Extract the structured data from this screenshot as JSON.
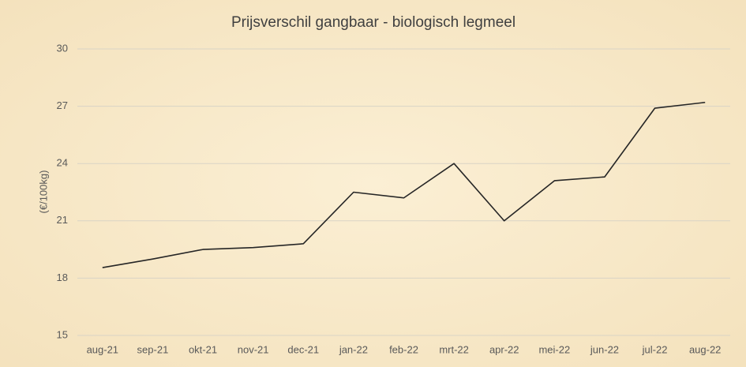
{
  "chart_data": {
    "type": "line",
    "title": "Prijsverschil gangbaar - biologisch legmeel",
    "y_label": "(€/100kg)",
    "categories": [
      "aug-21",
      "sep-21",
      "okt-21",
      "nov-21",
      "dec-21",
      "jan-22",
      "feb-22",
      "mrt-22",
      "apr-22",
      "mei-22",
      "jun-22",
      "jul-22",
      "aug-22"
    ],
    "values": [
      18.55,
      19.0,
      19.5,
      19.6,
      19.8,
      22.5,
      22.2,
      24.0,
      21.0,
      23.1,
      23.3,
      26.9,
      27.2
    ],
    "color": "#262626",
    "ylim": [
      15,
      30
    ],
    "yticks": [
      15,
      18,
      21,
      24,
      27,
      30
    ],
    "grid": true
  }
}
